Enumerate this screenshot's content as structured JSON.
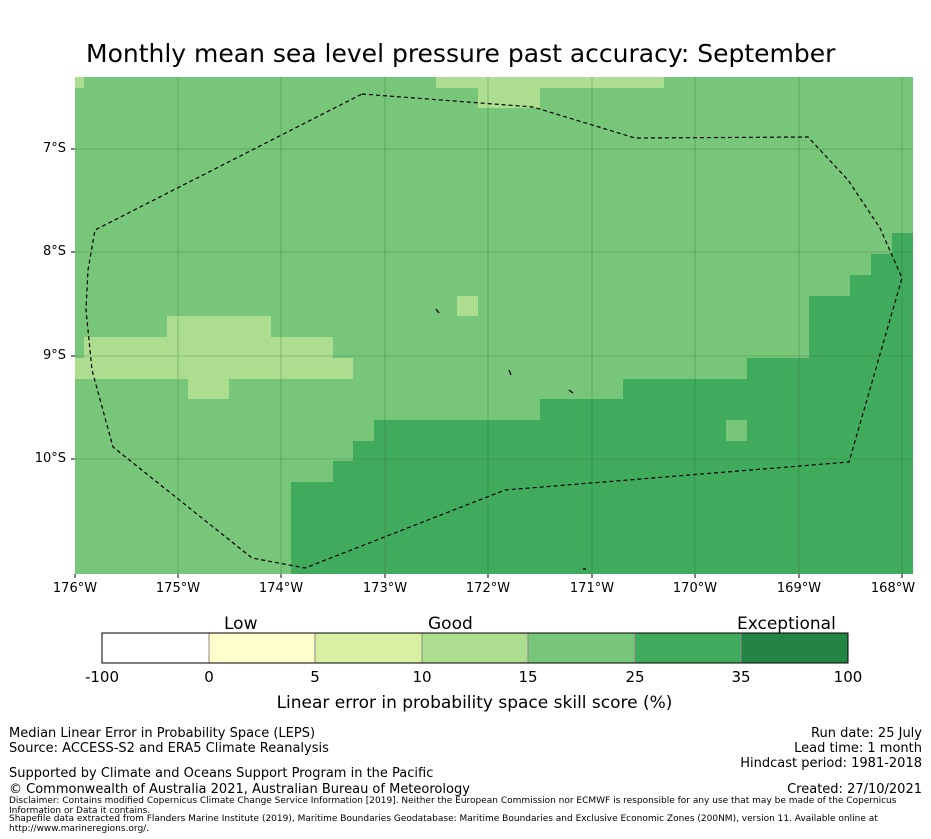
{
  "title": "Monthly mean sea level pressure past accuracy: September",
  "map": {
    "lat_labels": [
      "7°S",
      "8°S",
      "9°S",
      "10°S"
    ],
    "lon_labels": [
      "176°W",
      "175°W",
      "174°W",
      "173°W",
      "172°W",
      "171°W",
      "170°W",
      "169°W",
      "168°W"
    ],
    "lon_range": [
      -176,
      -168
    ],
    "lat_range": [
      -11.1,
      -6.3
    ],
    "colors": {
      "skill_15_25": "#78c679",
      "skill_10_15": "#addd8e",
      "skill_25_35": "#41ab5d",
      "grid": "#2d6b35",
      "boundary": "#000000"
    }
  },
  "colorbar": {
    "categories": [
      "Low",
      "Good",
      "Exceptional"
    ],
    "ticks": [
      "-100",
      "0",
      "5",
      "10",
      "15",
      "25",
      "35",
      "100"
    ],
    "colors": [
      "#ffffff",
      "#ffffcc",
      "#d9f0a3",
      "#addd8e",
      "#78c679",
      "#41ab5d",
      "#238443"
    ],
    "xlabel": "Linear error in probability space skill score (%)"
  },
  "footer": {
    "left_line1": "Median Linear Error in Probability Space (LEPS)",
    "left_line2": "Source: ACCESS-S2 and ERA5 Climate Reanalysis",
    "supported": "Supported by Climate and Oceans Support Program in the Pacific",
    "copyright": "© Commonwealth of Australia 2021, Australian Bureau of Meteorology",
    "disclaimer": "Disclaimer: Contains modified Copernicus Climate Change Service Information [2019]. Neither the European Commission nor ECMWF is responsible for any use that may be made of the Copernicus Information or Data it contains.",
    "shapefile": "Shapefile data extracted from Flanders Marine Institute (2019), Maritime Boundaries Geodatabase: Maritime Boundaries and Exclusive Economic Zones (200NM), version 11. Available online at http://www.marineregions.org/.",
    "run_date": "Run date: 25 July",
    "lead_time": "Lead time: 1 month",
    "hindcast": "Hindcast period: 1981-2018",
    "created": "Created: 27/10/2021"
  }
}
